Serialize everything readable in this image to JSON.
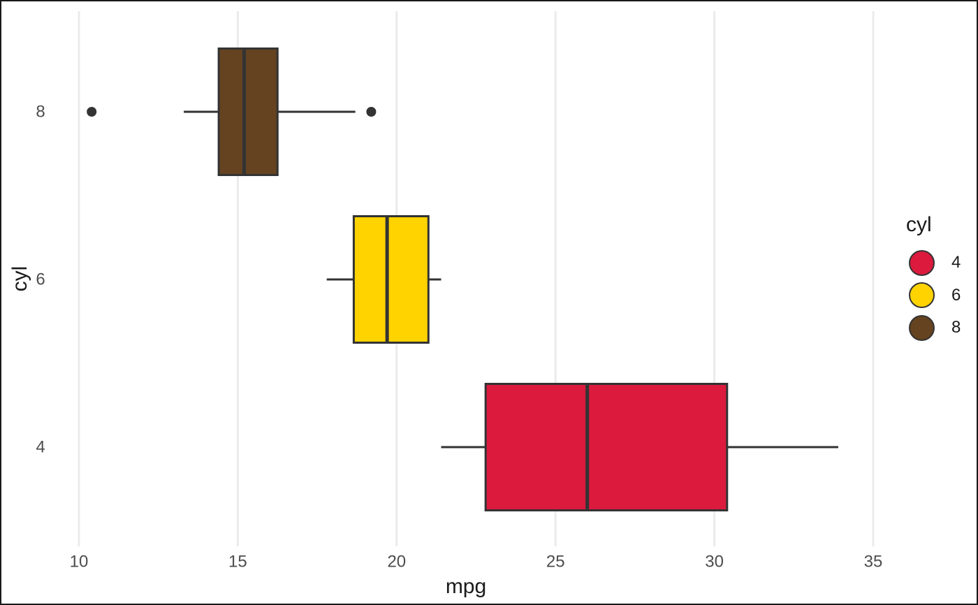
{
  "chart_data": {
    "type": "boxplot",
    "orientation": "horizontal",
    "title": "",
    "xlabel": "mpg",
    "ylabel": "cyl",
    "x_ticks": [
      10,
      15,
      20,
      25,
      30,
      35
    ],
    "xlim": [
      9.2,
      35.4
    ],
    "categories": [
      "8",
      "6",
      "4"
    ],
    "series": [
      {
        "label": "8",
        "color": "#654320",
        "whisker_low": 13.3,
        "q1": 14.4,
        "median": 15.2,
        "q3": 16.25,
        "whisker_high": 18.7,
        "outliers": [
          10.4,
          19.2
        ]
      },
      {
        "label": "6",
        "color": "#FFD300",
        "whisker_low": 17.8,
        "q1": 18.65,
        "median": 19.7,
        "q3": 21.0,
        "whisker_high": 21.4,
        "outliers": []
      },
      {
        "label": "4",
        "color": "#DB1A3E",
        "whisker_low": 21.4,
        "q1": 22.8,
        "median": 26.0,
        "q3": 30.4,
        "whisker_high": 33.9,
        "outliers": []
      }
    ],
    "legend": {
      "title": "cyl",
      "position": "right",
      "items": [
        {
          "label": "4",
          "color": "#DB1A3E"
        },
        {
          "label": "6",
          "color": "#FFD300"
        },
        {
          "label": "8",
          "color": "#654320"
        }
      ]
    },
    "grid": {
      "vertical": true,
      "horizontal": false
    },
    "styles": {
      "box_border_color": "#333333",
      "outlier_color": "#333333",
      "gridline_color": "#ebebeb",
      "tick_label_color": "#4d4d4d",
      "title_color": "#1a1a1a",
      "background": "#ffffff",
      "frame_border": "#1a1a1a"
    }
  }
}
